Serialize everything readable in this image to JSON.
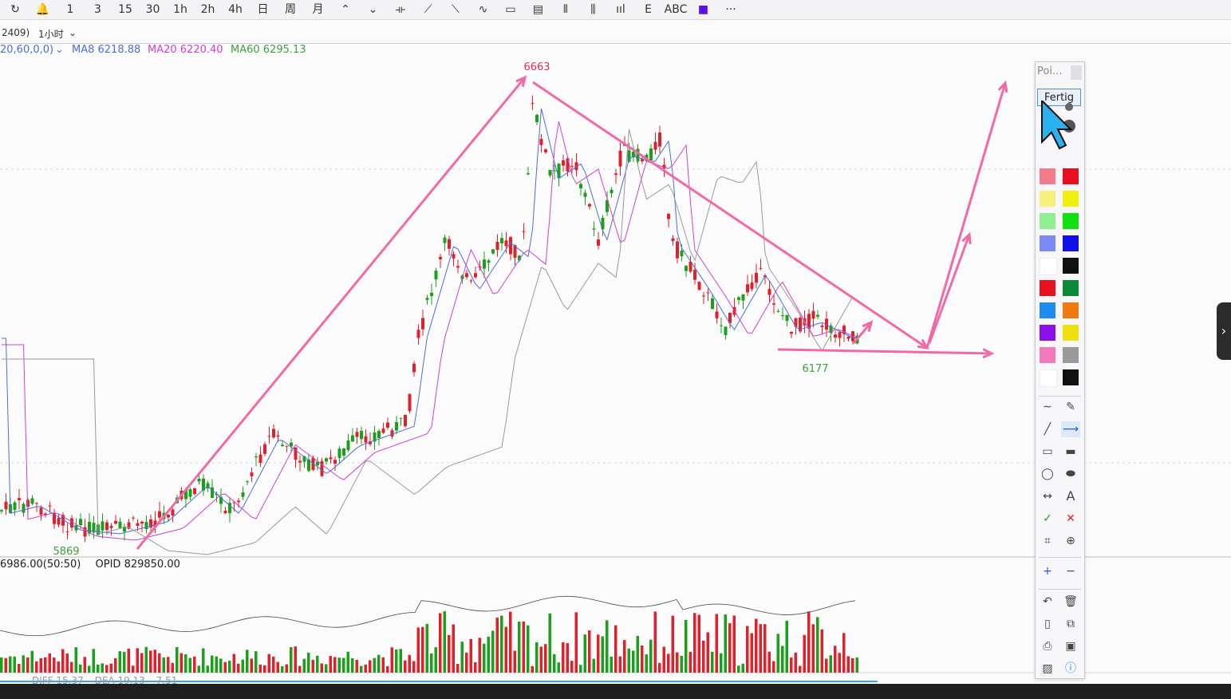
{
  "toolbar": {
    "items": [
      "↻",
      "🔔",
      "1",
      "3",
      "15",
      "30",
      "1h",
      "2h",
      "4h",
      "日",
      "周",
      "月",
      "⌃",
      "⌄",
      "⟛",
      "⟋",
      "⟍",
      "∿",
      "▭",
      "▤",
      "⫴",
      "⫼",
      "ııl",
      "E",
      "ABC",
      "■",
      "···"
    ]
  },
  "subbar": {
    "contract": "2409)",
    "period": "1小时",
    "period_chevron": "chevron-down-icon"
  },
  "ma": {
    "params": "20,60,0,0)",
    "ma8": "MA8 6218.88",
    "ma20": "MA20 6220.40",
    "ma60": "MA60 6295.13",
    "colors": {
      "ma8": "#4a6fd8",
      "ma20": "#d040d0",
      "ma60": "#3ea03e"
    }
  },
  "chart_data": {
    "type": "candlestick",
    "annotations": {
      "high": "6663",
      "low_left": "5869",
      "low_right": "6177"
    },
    "high_value": 6663,
    "low_left_value": 5869,
    "low_right_value": 6177,
    "ma_values": {
      "MA8": 6218.88,
      "MA20": 6220.4,
      "MA60": 6295.13
    },
    "colors": {
      "up": "#e0202a",
      "down": "#1aa01a",
      "drawing": "#f06aa8"
    }
  },
  "volume": {
    "label1": "6986.00(50:50)",
    "label2": "OPID 829850.00"
  },
  "macd": {
    "diff": "DIFF 15.37",
    "dea": "DEA 19.13",
    "macd": "7.51"
  },
  "palette": {
    "title": "Poi...",
    "done": "Fertig",
    "swatches": [
      [
        "#f27a8a",
        "#e8101e"
      ],
      [
        "#f6f07a",
        "#f0f010"
      ],
      [
        "#8ef08e",
        "#10e010"
      ],
      [
        "#7a8af6",
        "#1010e8"
      ],
      [
        "#ffffff",
        "#111111"
      ],
      [
        "#e8101e",
        "#0c8a3c"
      ],
      [
        "#1e8cf0",
        "#f07a10"
      ],
      [
        "#8a10e8",
        "#f0e010"
      ],
      [
        "#f27ab8",
        "#9a9a9a"
      ],
      [
        "#ffffff",
        "#111111"
      ]
    ],
    "tools": [
      "curve-icon",
      "brush-icon",
      "line-icon",
      "arrow-line-icon",
      "rectangle-icon",
      "filled-rectangle-icon",
      "ellipse-icon",
      "filled-ellipse-icon",
      "double-arrow-icon",
      "text-icon",
      "check-icon",
      "delete-x-icon",
      "crop-icon",
      "zoom-icon",
      "plus-icon",
      "minus-icon",
      "undo-icon",
      "trash-icon",
      "new-doc-icon",
      "copy-icon",
      "print-icon",
      "save-icon",
      "image-icon",
      "info-icon"
    ],
    "text_tool": "A"
  },
  "side_tab": "›"
}
